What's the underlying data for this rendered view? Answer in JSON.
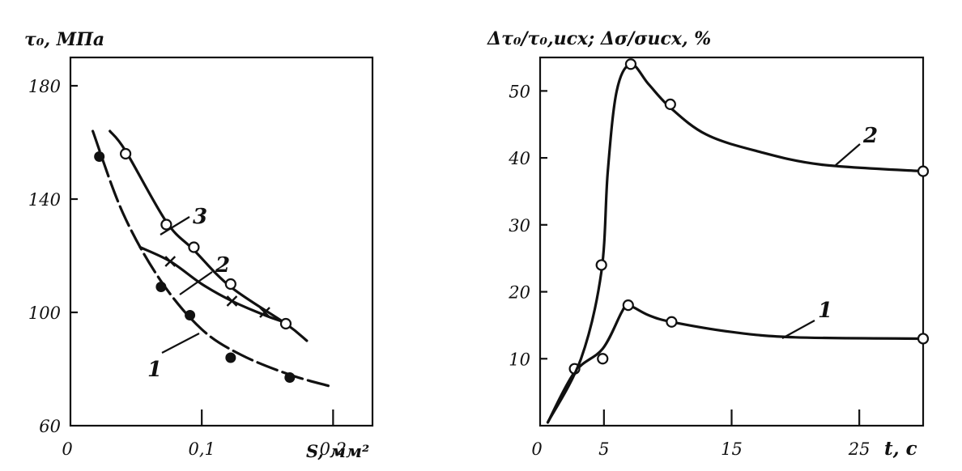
{
  "chart_data": [
    {
      "type": "line",
      "title": "",
      "ylabel": "τ₀, МПа",
      "xlabel": "S, мм²",
      "xlim": [
        0,
        0.23
      ],
      "ylim": [
        60,
        190
      ],
      "x_ticks": [
        0,
        0.1,
        0.2
      ],
      "x_tick_labels": [
        "0",
        "0,1",
        "0,2"
      ],
      "y_ticks": [
        60,
        100,
        140,
        180
      ],
      "y_tick_labels": [
        "60",
        "100",
        "140",
        "180"
      ],
      "grid": false,
      "series": [
        {
          "name": "1",
          "style": "dashed",
          "marker": "filled-circle",
          "x": [
            0.022,
            0.069,
            0.091,
            0.122,
            0.167
          ],
          "y": [
            155,
            109,
            99,
            84,
            77
          ],
          "curve": [
            [
              0.017,
              164
            ],
            [
              0.04,
              135
            ],
            [
              0.069,
              111
            ],
            [
              0.1,
              94
            ],
            [
              0.13,
              85
            ],
            [
              0.167,
              78
            ],
            [
              0.197,
              74
            ]
          ]
        },
        {
          "name": "2",
          "style": "solid",
          "marker": "cross",
          "x": [
            0.076,
            0.123,
            0.148
          ],
          "y": [
            118,
            104,
            100
          ],
          "curve": [
            [
              0.053,
              123
            ],
            [
              0.076,
              118
            ],
            [
              0.1,
              110
            ],
            [
              0.123,
              104
            ],
            [
              0.148,
              99
            ],
            [
              0.16,
              97
            ]
          ]
        },
        {
          "name": "3",
          "style": "solid",
          "marker": "open-circle",
          "x": [
            0.042,
            0.073,
            0.094,
            0.122,
            0.164
          ],
          "y": [
            156,
            131,
            123,
            110,
            96
          ],
          "curve": [
            [
              0.03,
              164
            ],
            [
              0.042,
              157
            ],
            [
              0.073,
              132
            ],
            [
              0.094,
              122
            ],
            [
              0.122,
              109
            ],
            [
              0.164,
              96
            ],
            [
              0.18,
              90
            ]
          ]
        }
      ]
    },
    {
      "type": "line",
      "title": "",
      "ylabel": "Δτ₀/τ₀,исх; Δσ/σисх, %",
      "xlabel": "t, c",
      "xlim": [
        0,
        30
      ],
      "ylim": [
        0,
        55
      ],
      "x_ticks": [
        0,
        5,
        15,
        25
      ],
      "x_tick_labels": [
        "0",
        "5",
        "15",
        "25"
      ],
      "y_ticks": [
        10,
        20,
        30,
        40,
        50
      ],
      "y_tick_labels": [
        "10",
        "20",
        "30",
        "40",
        "50"
      ],
      "grid": false,
      "series": [
        {
          "name": "1",
          "style": "solid",
          "marker": "open-circle",
          "x": [
            2.7,
            4.9,
            6.9,
            10.3,
            30
          ],
          "y": [
            8.5,
            10,
            18,
            15.5,
            13
          ],
          "curve": [
            [
              0.6,
              0.5
            ],
            [
              2.7,
              8
            ],
            [
              4.9,
              11.5
            ],
            [
              6.4,
              17
            ],
            [
              6.9,
              18
            ],
            [
              8.5,
              16.5
            ],
            [
              10.3,
              15.5
            ],
            [
              15,
              14
            ],
            [
              20,
              13.2
            ],
            [
              30,
              13
            ]
          ]
        },
        {
          "name": "2",
          "style": "solid",
          "marker": "open-circle",
          "x": [
            4.8,
            7.1,
            10.2,
            30
          ],
          "y": [
            24,
            54,
            48,
            38
          ],
          "curve": [
            [
              0.6,
              0.5
            ],
            [
              3.2,
              10
            ],
            [
              4.8,
              23
            ],
            [
              5.3,
              38
            ],
            [
              6.0,
              50
            ],
            [
              7.1,
              54
            ],
            [
              8.5,
              51
            ],
            [
              10.2,
              47.5
            ],
            [
              13,
              43.5
            ],
            [
              17,
              41
            ],
            [
              22,
              39
            ],
            [
              30,
              38
            ]
          ]
        }
      ]
    }
  ]
}
